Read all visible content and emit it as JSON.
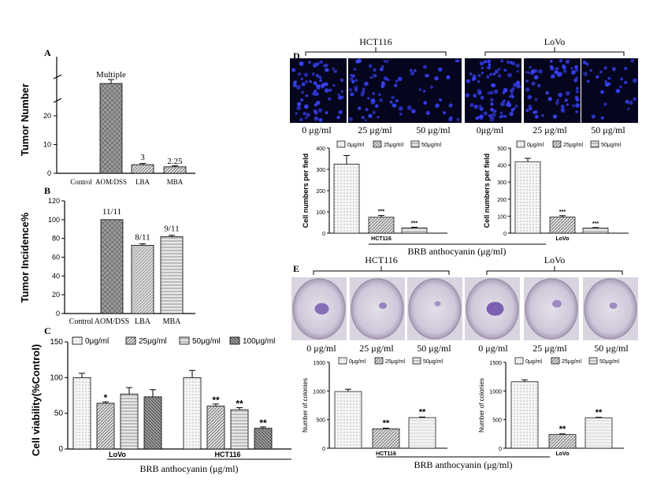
{
  "chart_data": [
    {
      "panel": "A",
      "type": "bar",
      "ylabel": "Tumor Number",
      "categories": [
        "Control",
        "AOM/DSS",
        "LBA",
        "MBA"
      ],
      "values": [
        0,
        null,
        3,
        2.25
      ],
      "errors": [
        0,
        null,
        0.4,
        0.4
      ],
      "data_labels": [
        "",
        "Multiple",
        "3",
        "2.25"
      ],
      "yticks": [
        "0",
        "10",
        "20"
      ],
      "ylim": [
        0,
        25
      ],
      "axis_break": true
    },
    {
      "panel": "B",
      "type": "bar",
      "ylabel": "Tumor Incidence%",
      "categories": [
        "Control",
        "AOM/DSS",
        "LBA",
        "MBA"
      ],
      "values": [
        0,
        100,
        72.7,
        81.8
      ],
      "errors": [
        0,
        0,
        1.5,
        1.5
      ],
      "data_labels": [
        "",
        "11/11",
        "8/11",
        "9/11"
      ],
      "yticks": [
        "0",
        "20",
        "40",
        "60",
        "80",
        "100",
        "120"
      ],
      "ylim": [
        0,
        120
      ]
    },
    {
      "panel": "C",
      "type": "bar",
      "ylabel": "Cell viability(%Control)",
      "xlabel": "BRB anthocyanin (μg/ml)",
      "categories": [
        "LoVo",
        "HCT116"
      ],
      "legend": [
        "0μg/ml",
        "25μg/ml",
        "50μg/ml",
        "100μg/ml"
      ],
      "series": [
        {
          "name": "0μg/ml",
          "values": [
            100,
            100
          ],
          "errors": [
            6,
            10
          ],
          "stars": [
            "",
            ""
          ]
        },
        {
          "name": "25μg/ml",
          "values": [
            64,
            60
          ],
          "errors": [
            2,
            3
          ],
          "stars": [
            "*",
            "**"
          ]
        },
        {
          "name": "50μg/ml",
          "values": [
            77,
            55
          ],
          "errors": [
            9,
            3
          ],
          "stars": [
            "",
            "**"
          ]
        },
        {
          "name": "100μg/ml",
          "values": [
            73,
            29
          ],
          "errors": [
            10,
            2
          ],
          "stars": [
            "",
            "**"
          ]
        }
      ],
      "yticks": [
        "0",
        "50",
        "100",
        "150"
      ],
      "ylim": [
        0,
        150
      ]
    },
    {
      "panel": "D",
      "type": "bar",
      "group_titles": [
        "HCT116",
        "LoVo"
      ],
      "image_labels": [
        "0 μg/ml",
        "25 μg/ml",
        "50 μg/ml",
        "0μg/ml",
        "25 μg/ml",
        "50 μg/ml"
      ],
      "xlabel": "BRB anthocyanin (μg/ml)",
      "legend": [
        "0μg/ml",
        "25μg/ml",
        "50μg/ml"
      ],
      "subplots": [
        {
          "category": "HCT116",
          "ylabel": "Cell numbers per field",
          "values": [
            325,
            75,
            25
          ],
          "errors": [
            40,
            8,
            3
          ],
          "stars": [
            "",
            "***",
            "***"
          ],
          "yticks": [
            "0",
            "100",
            "200",
            "300",
            "400"
          ],
          "ylim": [
            0,
            400
          ]
        },
        {
          "category": "LoVo",
          "ylabel": "Cell numbers per field",
          "values": [
            420,
            95,
            30
          ],
          "errors": [
            20,
            8,
            3
          ],
          "stars": [
            "",
            "***",
            "***"
          ],
          "yticks": [
            "0",
            "100",
            "200",
            "300",
            "400",
            "500"
          ],
          "ylim": [
            0,
            500
          ]
        }
      ]
    },
    {
      "panel": "E",
      "type": "bar",
      "group_titles": [
        "HCT116",
        "LoVo"
      ],
      "image_labels": [
        "0 μg/ml",
        "25 μg/ml",
        "50 μg/ml",
        "0 μg/ml",
        "25 μg/ml",
        "50 μg/ml"
      ],
      "xlabel": "BRB anthocyanin (μg/ml)",
      "legend": [
        "0μg/ml",
        "25μg/ml",
        "50μg/ml"
      ],
      "subplots": [
        {
          "category": "HCT116",
          "ylabel": "Number of colonies",
          "values": [
            990,
            340,
            535
          ],
          "errors": [
            40,
            10,
            10
          ],
          "stars": [
            "",
            "**",
            "**"
          ],
          "yticks": [
            "0",
            "500",
            "1000",
            "1500"
          ],
          "ylim": [
            0,
            1500
          ]
        },
        {
          "category": "LoVo",
          "ylabel": "Number of colonies",
          "values": [
            1160,
            240,
            530
          ],
          "errors": [
            35,
            10,
            10
          ],
          "stars": [
            "",
            "**",
            "**"
          ],
          "yticks": [
            "0",
            "500",
            "1000",
            "1500"
          ],
          "ylim": [
            0,
            1500
          ]
        }
      ]
    }
  ],
  "colors": {
    "axis": "#000000",
    "bar_fill_light": "#f2f2f2",
    "bar_fill_mid": "#d0d0d0",
    "bar_fill_dark": "#8a8a8a",
    "fluorescence_bg": "#05051e",
    "fluorescence_dot": "#3a44ff",
    "plate_bg": "#c9c2d2",
    "plate_stain": "#6b4aa8"
  }
}
